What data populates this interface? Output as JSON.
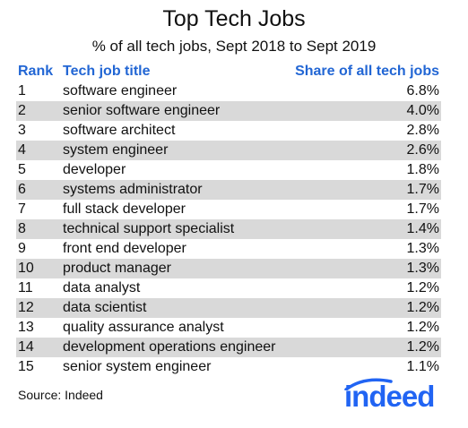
{
  "chart_data": {
    "type": "table",
    "title": "Top Tech Jobs",
    "subtitle": "% of all tech jobs, Sept 2018 to Sept 2019",
    "columns": [
      "Rank",
      "Tech job title",
      "Share of all tech jobs"
    ],
    "rows": [
      {
        "rank": "1",
        "title": "software engineer",
        "share": "6.8%"
      },
      {
        "rank": "2",
        "title": "senior software engineer",
        "share": "4.0%"
      },
      {
        "rank": "3",
        "title": "software architect",
        "share": "2.8%"
      },
      {
        "rank": "4",
        "title": "system engineer",
        "share": "2.6%"
      },
      {
        "rank": "5",
        "title": "developer",
        "share": "1.8%"
      },
      {
        "rank": "6",
        "title": "systems administrator",
        "share": "1.7%"
      },
      {
        "rank": "7",
        "title": "full stack developer",
        "share": "1.7%"
      },
      {
        "rank": "8",
        "title": "technical support specialist",
        "share": "1.4%"
      },
      {
        "rank": "9",
        "title": "front end developer",
        "share": "1.3%"
      },
      {
        "rank": "10",
        "title": "product manager",
        "share": "1.3%"
      },
      {
        "rank": "11",
        "title": "data analyst",
        "share": "1.2%"
      },
      {
        "rank": "12",
        "title": "data scientist",
        "share": "1.2%"
      },
      {
        "rank": "13",
        "title": "quality assurance analyst",
        "share": "1.2%"
      },
      {
        "rank": "14",
        "title": "development operations engineer",
        "share": "1.2%"
      },
      {
        "rank": "15",
        "title": "senior system engineer",
        "share": "1.1%"
      }
    ],
    "source": "Source: Indeed",
    "header_color": "#2266d4",
    "stripe_color": "#d9d9d9"
  },
  "logo": {
    "text": "indeed",
    "color": "#2164f3",
    "icon": "indeed-logo"
  }
}
